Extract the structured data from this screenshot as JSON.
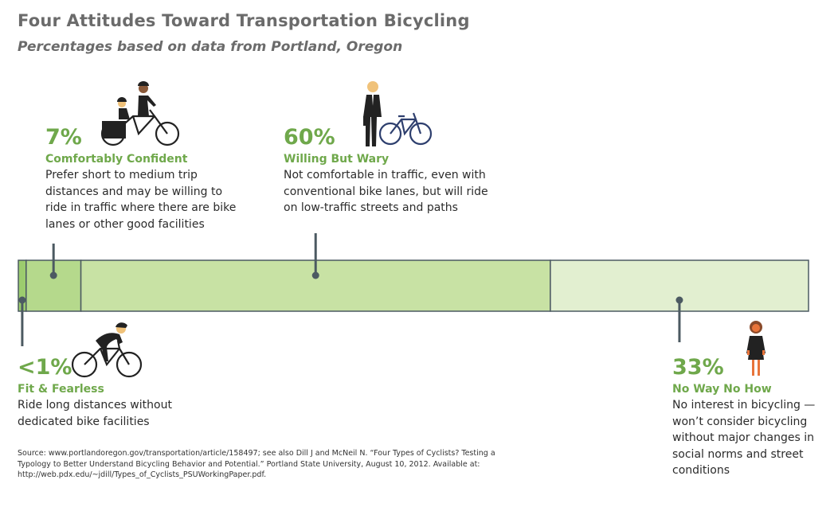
{
  "title": "Four Attitudes Toward Transportation Bicycling",
  "subtitle": "Percentages based on data from Portland, Oregon",
  "chart_data": {
    "type": "bar",
    "orientation": "horizontal-stacked",
    "unit": "%",
    "categories": [
      "Fit & Fearless",
      "Comfortably Confident",
      "Willing But Wary",
      "No Way No How"
    ],
    "values": [
      1,
      7,
      60,
      33
    ],
    "value_labels": [
      "<1%",
      "7%",
      "60%",
      "33%"
    ],
    "colors": [
      "#9ccc6e",
      "#b5d98c",
      "#c8e2a4",
      "#e2efd0"
    ],
    "border_color": "#4c5a62"
  },
  "segments": [
    {
      "pct": "<1%",
      "name": "Fit & Fearless",
      "desc": [
        "Ride long distances without",
        "dedicated bike facilities"
      ]
    },
    {
      "pct": "7%",
      "name": "Comfortably Confident",
      "desc": [
        "Prefer short to medium trip",
        "distances and may be willing to",
        "ride in traffic where there are bike",
        "lanes or other good facilities"
      ]
    },
    {
      "pct": "60%",
      "name": "Willing But Wary",
      "desc": [
        "Not comfortable in traffic, even with",
        "conventional bike lanes, but will ride",
        "on low-traffic streets and paths"
      ]
    },
    {
      "pct": "33%",
      "name": "No Way No How",
      "desc": [
        "No interest in bicycling —",
        "won’t consider bicycling",
        "without major changes in",
        "social norms and street",
        "conditions"
      ]
    }
  ],
  "icons": [
    "tandem-cyclists-icon",
    "business-commuter-bike-icon",
    "racing-cyclist-icon",
    "standing-woman-icon"
  ],
  "source": "Source: www.portlandoregon.gov/transportation/article/158497; see also Dill J and McNeil N. “Four Types of Cyclists? Testing a Typology to Better Understand Bicycling Behavior and Potential.” Portland State University, August 10, 2012.  Available at: http://web.pdx.edu/~jdill/Types_of_Cyclists_PSUWorkingPaper.pdf."
}
